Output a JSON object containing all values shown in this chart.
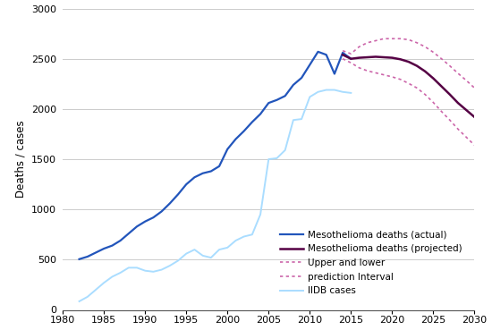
{
  "title": "",
  "ylabel": "Deaths / cases",
  "xlabel": "",
  "xlim": [
    1980,
    2030
  ],
  "ylim": [
    0,
    3000
  ],
  "yticks": [
    0,
    500,
    1000,
    1500,
    2000,
    2500,
    3000
  ],
  "xticks": [
    1980,
    1985,
    1990,
    1995,
    2000,
    2005,
    2010,
    2015,
    2020,
    2025,
    2030
  ],
  "actual_x": [
    1982,
    1983,
    1984,
    1985,
    1986,
    1987,
    1988,
    1989,
    1990,
    1991,
    1992,
    1993,
    1994,
    1995,
    1996,
    1997,
    1998,
    1999,
    2000,
    2001,
    2002,
    2003,
    2004,
    2005,
    2006,
    2007,
    2008,
    2009,
    2010,
    2011,
    2012,
    2013,
    2014,
    2015
  ],
  "actual_y": [
    505,
    530,
    570,
    610,
    640,
    690,
    760,
    830,
    880,
    920,
    980,
    1060,
    1150,
    1250,
    1320,
    1360,
    1380,
    1430,
    1600,
    1700,
    1780,
    1870,
    1950,
    2060,
    2090,
    2130,
    2240,
    2310,
    2440,
    2570,
    2540,
    2350,
    2560,
    2500
  ],
  "projected_x": [
    2014,
    2015,
    2016,
    2017,
    2018,
    2019,
    2020,
    2021,
    2022,
    2023,
    2024,
    2025,
    2026,
    2027,
    2028,
    2029,
    2030
  ],
  "projected_y": [
    2540,
    2500,
    2510,
    2515,
    2520,
    2515,
    2510,
    2495,
    2470,
    2430,
    2375,
    2305,
    2225,
    2145,
    2060,
    1990,
    1920
  ],
  "upper_x": [
    2014,
    2015,
    2016,
    2017,
    2018,
    2019,
    2020,
    2021,
    2022,
    2023,
    2024,
    2025,
    2026,
    2027,
    2028,
    2029,
    2030
  ],
  "upper_y": [
    2580,
    2550,
    2620,
    2660,
    2680,
    2700,
    2700,
    2700,
    2690,
    2660,
    2620,
    2565,
    2500,
    2430,
    2355,
    2285,
    2210
  ],
  "lower_x": [
    2014,
    2015,
    2016,
    2017,
    2018,
    2019,
    2020,
    2021,
    2022,
    2023,
    2024,
    2025,
    2026,
    2027,
    2028,
    2029,
    2030
  ],
  "lower_y": [
    2500,
    2460,
    2410,
    2380,
    2360,
    2340,
    2320,
    2295,
    2255,
    2210,
    2145,
    2065,
    1975,
    1890,
    1800,
    1720,
    1640
  ],
  "iidb_x": [
    1982,
    1983,
    1984,
    1985,
    1986,
    1987,
    1988,
    1989,
    1990,
    1991,
    1992,
    1993,
    1994,
    1995,
    1996,
    1997,
    1998,
    1999,
    2000,
    2001,
    2002,
    2003,
    2004,
    2005,
    2006,
    2007,
    2008,
    2009,
    2010,
    2011,
    2012,
    2013,
    2014,
    2015
  ],
  "iidb_y": [
    85,
    130,
    200,
    270,
    330,
    370,
    420,
    420,
    390,
    380,
    400,
    440,
    490,
    560,
    600,
    540,
    520,
    600,
    620,
    690,
    730,
    750,
    950,
    1500,
    1510,
    1590,
    1890,
    1900,
    2120,
    2170,
    2190,
    2190,
    2170,
    2160
  ],
  "actual_color": "#2255bb",
  "projected_color": "#550044",
  "upper_color": "#cc66aa",
  "lower_color": "#cc66aa",
  "iidb_color": "#aaddff",
  "legend_labels": [
    "Mesothelioma deaths (actual)",
    "Mesothelioma deaths (projected)",
    "Upper and lower",
    "prediction Interval",
    "IIDB cases"
  ],
  "background_color": "#ffffff",
  "grid_color": "#cccccc"
}
